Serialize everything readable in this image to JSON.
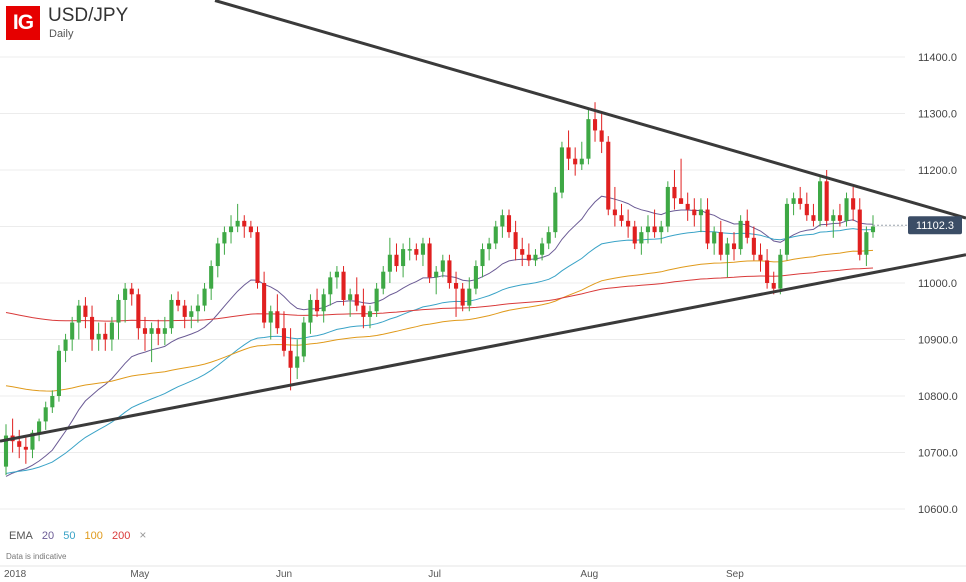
{
  "header": {
    "logo": "IG",
    "title": "USD/JPY",
    "subtitle": "Daily"
  },
  "legend": {
    "label": "EMA",
    "items": [
      {
        "label": "20",
        "color": "#6b5b95"
      },
      {
        "label": "50",
        "color": "#3aa3c7"
      },
      {
        "label": "100",
        "color": "#e09a1b"
      },
      {
        "label": "200",
        "color": "#d93a3a"
      }
    ],
    "close": "×"
  },
  "disclaimer": "Data is indicative",
  "chart_data": {
    "type": "candlestick",
    "title": "USD/JPY",
    "subtitle": "Daily",
    "ylim": [
      10570,
      11480
    ],
    "y_ticks": [
      "11400.0",
      "11300.0",
      "11200.0",
      "11100.0",
      "11000.0",
      "10900.0",
      "10800.0",
      "10700.0",
      "10600.0"
    ],
    "x_labels": [
      "2018",
      "May",
      "Jun",
      "Jul",
      "Aug",
      "Sep"
    ],
    "last_price": "11102.3",
    "colors": {
      "up": "#3ea845",
      "down": "#e02020",
      "trendline": "#3a3a3a",
      "price_tag": "#3b4d66"
    },
    "candles": [
      [
        10675,
        10750,
        10660,
        10730
      ],
      [
        10730,
        10760,
        10700,
        10720
      ],
      [
        10720,
        10740,
        10690,
        10710
      ],
      [
        10710,
        10730,
        10680,
        10705
      ],
      [
        10705,
        10740,
        10690,
        10735
      ],
      [
        10735,
        10760,
        10720,
        10755
      ],
      [
        10755,
        10790,
        10740,
        10780
      ],
      [
        10780,
        10810,
        10770,
        10800
      ],
      [
        10800,
        10890,
        10790,
        10880
      ],
      [
        10880,
        10910,
        10860,
        10900
      ],
      [
        10900,
        10940,
        10880,
        10930
      ],
      [
        10930,
        10970,
        10900,
        10960
      ],
      [
        10960,
        10975,
        10920,
        10940
      ],
      [
        10940,
        10960,
        10880,
        10900
      ],
      [
        10900,
        10930,
        10880,
        10910
      ],
      [
        10910,
        10930,
        10880,
        10900
      ],
      [
        10900,
        10940,
        10880,
        10930
      ],
      [
        10930,
        10980,
        10900,
        10970
      ],
      [
        10970,
        11000,
        10930,
        10990
      ],
      [
        10990,
        11000,
        10960,
        10980
      ],
      [
        10980,
        10990,
        10900,
        10920
      ],
      [
        10920,
        10940,
        10880,
        10910
      ],
      [
        10910,
        10930,
        10860,
        10920
      ],
      [
        10920,
        10935,
        10890,
        10910
      ],
      [
        10910,
        10940,
        10890,
        10920
      ],
      [
        10920,
        10980,
        10910,
        10970
      ],
      [
        10970,
        10985,
        10950,
        10960
      ],
      [
        10960,
        10970,
        10920,
        10940
      ],
      [
        10940,
        10960,
        10920,
        10950
      ],
      [
        10950,
        10980,
        10930,
        10960
      ],
      [
        10960,
        11000,
        10950,
        10990
      ],
      [
        10990,
        11040,
        10970,
        11030
      ],
      [
        11030,
        11080,
        11010,
        11070
      ],
      [
        11070,
        11100,
        11050,
        11090
      ],
      [
        11090,
        11120,
        11070,
        11100
      ],
      [
        11100,
        11140,
        11090,
        11110
      ],
      [
        11110,
        11120,
        11080,
        11100
      ],
      [
        11100,
        11110,
        11080,
        11090
      ],
      [
        11090,
        11100,
        10990,
        11000
      ],
      [
        11000,
        11020,
        10920,
        10930
      ],
      [
        10930,
        10960,
        10900,
        10950
      ],
      [
        10950,
        10980,
        10910,
        10920
      ],
      [
        10920,
        10950,
        10870,
        10880
      ],
      [
        10880,
        10920,
        10810,
        10850
      ],
      [
        10850,
        10900,
        10830,
        10870
      ],
      [
        10870,
        10940,
        10860,
        10930
      ],
      [
        10930,
        10980,
        10910,
        10970
      ],
      [
        10970,
        10990,
        10940,
        10950
      ],
      [
        10950,
        10990,
        10930,
        10980
      ],
      [
        10980,
        11020,
        10960,
        11010
      ],
      [
        11010,
        11030,
        10990,
        11020
      ],
      [
        11020,
        11030,
        10960,
        10970
      ],
      [
        10970,
        10990,
        10940,
        10980
      ],
      [
        10980,
        11010,
        10950,
        10960
      ],
      [
        10960,
        10990,
        10920,
        10940
      ],
      [
        10940,
        10960,
        10920,
        10950
      ],
      [
        10950,
        11000,
        10940,
        10990
      ],
      [
        10990,
        11030,
        10980,
        11020
      ],
      [
        11020,
        11080,
        11000,
        11050
      ],
      [
        11050,
        11070,
        11020,
        11030
      ],
      [
        11030,
        11070,
        11010,
        11060
      ],
      [
        11060,
        11080,
        11040,
        11060
      ],
      [
        11060,
        11070,
        11040,
        11050
      ],
      [
        11050,
        11080,
        11030,
        11070
      ],
      [
        11070,
        11080,
        11000,
        11010
      ],
      [
        11010,
        11030,
        10980,
        11020
      ],
      [
        11020,
        11050,
        11010,
        11040
      ],
      [
        11040,
        11050,
        10990,
        11000
      ],
      [
        11000,
        11020,
        10940,
        10990
      ],
      [
        10990,
        11000,
        10950,
        10960
      ],
      [
        10960,
        11010,
        10950,
        10990
      ],
      [
        10990,
        11040,
        10980,
        11030
      ],
      [
        11030,
        11070,
        11010,
        11060
      ],
      [
        11060,
        11080,
        11040,
        11070
      ],
      [
        11070,
        11110,
        11060,
        11100
      ],
      [
        11100,
        11130,
        11080,
        11120
      ],
      [
        11120,
        11130,
        11080,
        11090
      ],
      [
        11090,
        11110,
        11040,
        11060
      ],
      [
        11060,
        11080,
        11030,
        11050
      ],
      [
        11050,
        11070,
        11030,
        11040
      ],
      [
        11040,
        11060,
        11030,
        11050
      ],
      [
        11050,
        11080,
        11040,
        11070
      ],
      [
        11070,
        11100,
        11060,
        11090
      ],
      [
        11090,
        11170,
        11080,
        11160
      ],
      [
        11160,
        11250,
        11150,
        11240
      ],
      [
        11240,
        11270,
        11200,
        11220
      ],
      [
        11220,
        11240,
        11190,
        11210
      ],
      [
        11210,
        11250,
        11200,
        11220
      ],
      [
        11220,
        11310,
        11210,
        11290
      ],
      [
        11290,
        11320,
        11250,
        11270
      ],
      [
        11270,
        11300,
        11230,
        11250
      ],
      [
        11250,
        11260,
        11120,
        11130
      ],
      [
        11130,
        11170,
        11100,
        11120
      ],
      [
        11120,
        11140,
        11100,
        11110
      ],
      [
        11110,
        11130,
        11080,
        11100
      ],
      [
        11100,
        11110,
        11060,
        11070
      ],
      [
        11070,
        11100,
        11050,
        11090
      ],
      [
        11090,
        11120,
        11070,
        11100
      ],
      [
        11100,
        11130,
        11080,
        11090
      ],
      [
        11090,
        11110,
        11070,
        11100
      ],
      [
        11100,
        11180,
        11090,
        11170
      ],
      [
        11170,
        11200,
        11130,
        11150
      ],
      [
        11150,
        11220,
        11140,
        11140
      ],
      [
        11140,
        11160,
        11110,
        11130
      ],
      [
        11130,
        11150,
        11100,
        11120
      ],
      [
        11120,
        11150,
        11090,
        11130
      ],
      [
        11130,
        11150,
        11060,
        11070
      ],
      [
        11070,
        11100,
        11050,
        11090
      ],
      [
        11090,
        11110,
        11040,
        11050
      ],
      [
        11050,
        11080,
        11010,
        11070
      ],
      [
        11070,
        11090,
        11040,
        11060
      ],
      [
        11060,
        11120,
        11050,
        11110
      ],
      [
        11110,
        11130,
        11070,
        11080
      ],
      [
        11080,
        11100,
        11040,
        11050
      ],
      [
        11050,
        11070,
        11020,
        11040
      ],
      [
        11040,
        11060,
        10990,
        11000
      ],
      [
        11000,
        11020,
        10980,
        10990
      ],
      [
        10990,
        11060,
        10980,
        11050
      ],
      [
        11050,
        11150,
        11040,
        11140
      ],
      [
        11140,
        11160,
        11120,
        11150
      ],
      [
        11150,
        11170,
        11130,
        11140
      ],
      [
        11140,
        11160,
        11110,
        11120
      ],
      [
        11120,
        11140,
        11100,
        11110
      ],
      [
        11110,
        11190,
        11100,
        11180
      ],
      [
        11180,
        11200,
        11100,
        11110
      ],
      [
        11110,
        11130,
        11080,
        11120
      ],
      [
        11120,
        11140,
        11100,
        11110
      ],
      [
        11110,
        11160,
        11100,
        11150
      ],
      [
        11150,
        11170,
        11110,
        11130
      ],
      [
        11130,
        11150,
        11040,
        11050
      ],
      [
        11050,
        11100,
        11030,
        11090
      ],
      [
        11090,
        11120,
        11080,
        11100
      ]
    ]
  }
}
